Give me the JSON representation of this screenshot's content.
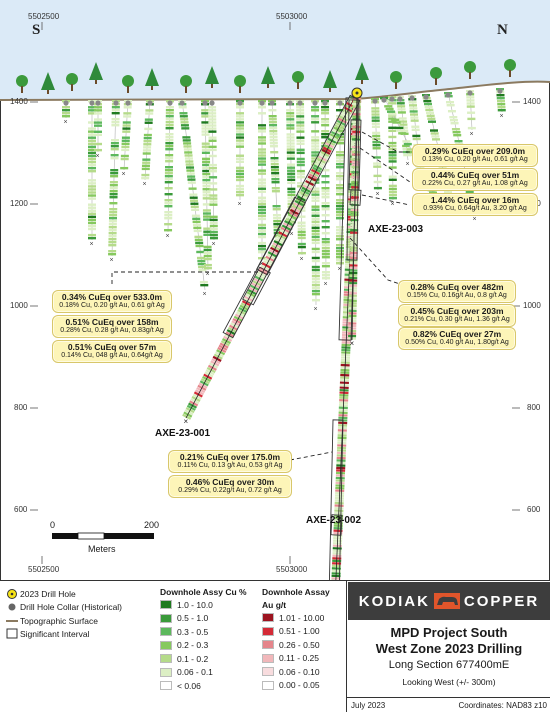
{
  "section": {
    "compass_left": "S",
    "compass_right": "N",
    "easting_top": [
      "5502500",
      "5503000"
    ],
    "easting_bottom": [
      "5502500",
      "5503000"
    ],
    "elevations_left": [
      "1400",
      "1200",
      "1000",
      "800",
      "600"
    ],
    "elevations_right": [
      "1400",
      "1200",
      "1000",
      "800",
      "600"
    ]
  },
  "holes": [
    {
      "name": "AXE-23-001"
    },
    {
      "name": "AXE-23-002"
    },
    {
      "name": "AXE-23-003"
    }
  ],
  "callouts": [
    {
      "main": "0.29% CuEq over 209.0m",
      "sub": "0.13% Cu, 0.20 g/t Au, 0.61 g/t Ag"
    },
    {
      "main": "0.44% CuEq over 51m",
      "sub": "0.22% Cu, 0.27 g/t Au, 1.08 g/t Ag"
    },
    {
      "main": "1.44% CuEq over 16m",
      "sub": "0.93% Cu, 0.64g/t Au, 3.20 g/t Ag"
    },
    {
      "main": "0.28% CuEq over 482m",
      "sub": "0.15% Cu, 0.16g/t Au, 0.8 g/t Ag"
    },
    {
      "main": "0.45% CuEq over 203m",
      "sub": "0.21% Cu, 0.30 g/t Au, 1.36 g/t Ag"
    },
    {
      "main": "0.82% CuEq over 27m",
      "sub": "0.50% Cu, 0.40 g/t Au, 1.80g/t Ag"
    },
    {
      "main": "0.34% CuEq over 533.0m",
      "sub": "0.18% Cu, 0.20 g/t Au, 0.61 g/t Ag"
    },
    {
      "main": "0.51% CuEq over 158m",
      "sub": "0.28% Cu, 0.28 g/t Au, 0.83g/t Ag"
    },
    {
      "main": "0.51% CuEq over 57m",
      "sub": "0.14% Cu, 048 g/t Au, 0.64g/t Ag"
    },
    {
      "main": "0.21% CuEq over 175.0m",
      "sub": "0.11% Cu, 0.13 g/t Au, 0.53 g/t Ag"
    },
    {
      "main": "0.46% CuEq over 30m",
      "sub": "0.29% Cu, 0.22g/t Au, 0.72 g/t Ag"
    }
  ],
  "scale": {
    "ticks": [
      "0",
      "200"
    ],
    "unit": "Meters"
  },
  "legend": {
    "symbols": [
      {
        "label": "2023 Drill Hole",
        "icon": "yellow-circle-icon"
      },
      {
        "label": "Drill Hole Collar (Historical)",
        "icon": "grey-dot-icon"
      },
      {
        "label": "Topographic Surface",
        "icon": "brown-line-icon"
      },
      {
        "label": "Significant  Interval",
        "icon": "empty-box-icon"
      }
    ],
    "cu_title": "Downhole Assy Cu %",
    "cu": [
      {
        "label": "1.0 - 10.0",
        "color": "#1f7a1f"
      },
      {
        "label": "0.5 - 1.0",
        "color": "#3a9a3a"
      },
      {
        "label": "0.3 - 0.5",
        "color": "#5cb85c"
      },
      {
        "label": "0.2 - 0.3",
        "color": "#86c95e"
      },
      {
        "label": "0.1 - 0.2",
        "color": "#b5db8a"
      },
      {
        "label": "0.06 - 0.1",
        "color": "#dcefc4"
      },
      {
        "label": "< 0.06",
        "color": "#ffffff"
      }
    ],
    "au_title_1": "Downhole Assay",
    "au_title_2": "Au g/t",
    "au": [
      {
        "label": "1.01 - 10.00",
        "color": "#9c1420"
      },
      {
        "label": "0.51 - 1.00",
        "color": "#d42a36"
      },
      {
        "label": "0.26 - 0.50",
        "color": "#e5858b"
      },
      {
        "label": "0.11 - 0.25",
        "color": "#f1b7ba"
      },
      {
        "label": "0.06 - 0.10",
        "color": "#f8dcde"
      },
      {
        "label": "0.00 - 0.05",
        "color": "#ffffff"
      }
    ]
  },
  "title_block": {
    "logo_left": "KODIAK",
    "logo_right": "COPPER",
    "title_1": "MPD Project South",
    "title_2": "West Zone 2023 Drilling",
    "subtitle": "Long Section 677400mE",
    "view": "Looking West (+/- 300m)",
    "date": "July 2023",
    "coords": "Coordinates: NAD83 z10"
  },
  "colors": {
    "sky": "#dbeaf7",
    "topo": "#8b7a60",
    "callout": "#fdf5b8",
    "logo_bg": "#3d3d3d",
    "logo_accent": "#e0552b"
  }
}
